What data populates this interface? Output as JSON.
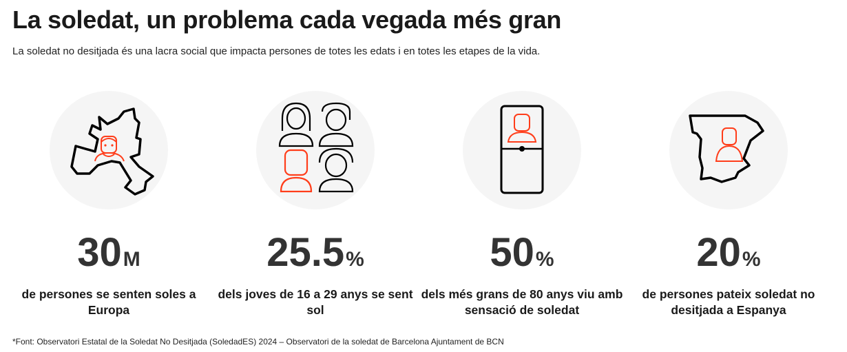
{
  "title": "La soledat, un problema cada vegada més gran",
  "subtitle": "La soledat no desitjada és una lacra social que impacta persones de totes les edats i en totes les etapes de la vida.",
  "accent_color": "#ff3d1a",
  "stats": [
    {
      "icon": "europe-map-person-icon",
      "value": "30",
      "unit": "M",
      "label": "de persones se senten soles a Europa"
    },
    {
      "icon": "young-people-group-icon",
      "value": "25.5",
      "unit": "%",
      "label": "dels joves de 16 a 29 anys se sent sol"
    },
    {
      "icon": "phone-elderly-person-icon",
      "value": "50",
      "unit": "%",
      "label": "dels més grans de 80 anys viu amb sensació de soledat"
    },
    {
      "icon": "spain-map-person-icon",
      "value": "20",
      "unit": "%",
      "label": "de persones pateix soledat no desitjada a Espanya"
    }
  ],
  "footnote": "*Font: Observatori Estatal de la Soledat No Desitjada (SoledadES) 2024 – Observatori de la soledat de Barcelona Ajuntament de BCN"
}
